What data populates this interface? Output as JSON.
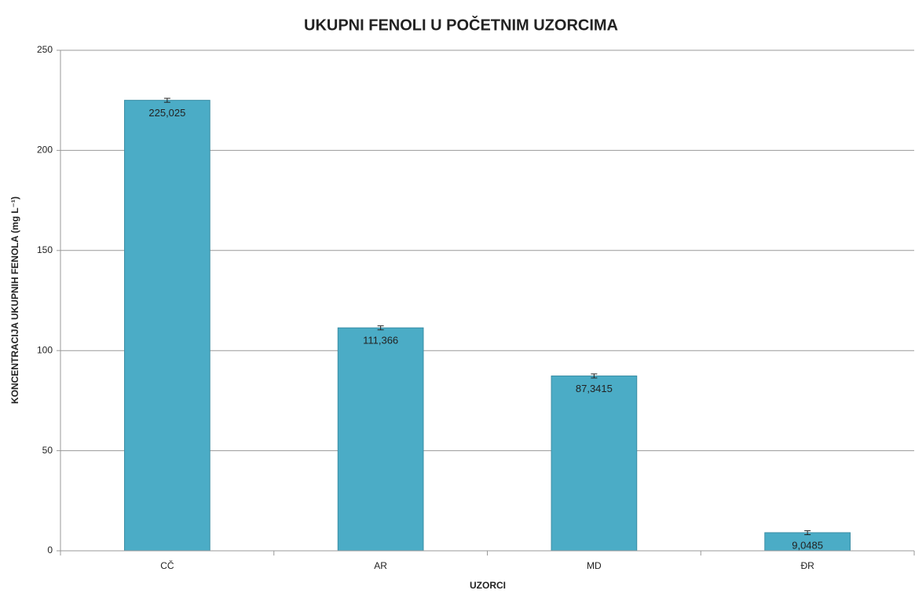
{
  "chart_data": {
    "type": "bar",
    "title": "UKUPNI FENOLI U POČETNIM UZORCIMA",
    "x_label": "UZORCI",
    "y_label": "KONCENTRACIJA UKUPNIH FENOLA (mg L⁻¹)",
    "categories": [
      "CČ",
      "AR",
      "MD",
      "ĐR"
    ],
    "values": [
      225.025,
      111.366,
      87.3415,
      9.0485
    ],
    "value_labels": [
      "225,025",
      "111,366",
      "87,3415",
      "9,0485"
    ],
    "errors": [
      1,
      1,
      1,
      1
    ],
    "color": "#4bacc6",
    "ylim": [
      0,
      250
    ],
    "yticks": [
      0,
      50,
      100,
      150,
      200,
      250
    ],
    "grid": true
  }
}
